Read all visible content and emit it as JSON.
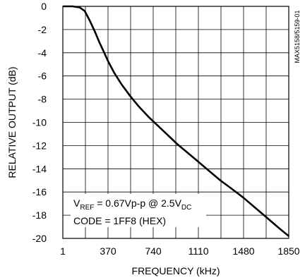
{
  "chart_data": {
    "type": "line",
    "xlabel": "FREQUENCY (kHz)",
    "ylabel": "RELATIVE OUTPUT (dB)",
    "xlim": [
      1,
      1850
    ],
    "ylim": [
      -20,
      0
    ],
    "grid": true,
    "x_ticks": [
      "1",
      "370",
      "740",
      "1110",
      "1480",
      "1850"
    ],
    "y_ticks": [
      "0",
      "-2",
      "-4",
      "-6",
      "-8",
      "-10",
      "-12",
      "-14",
      "-16",
      "-18",
      "-20"
    ],
    "series": [
      {
        "x": [
          1,
          80,
          140,
          180,
          220,
          260,
          300,
          340,
          370,
          420,
          480,
          550,
          620,
          700,
          780,
          860,
          940,
          1020,
          1110,
          1200,
          1290,
          1380,
          1480,
          1580,
          1680,
          1780,
          1850
        ],
        "y": [
          0,
          0,
          -0.1,
          -0.4,
          -1.2,
          -2.1,
          -3.1,
          -4.0,
          -4.7,
          -5.7,
          -6.7,
          -7.7,
          -8.6,
          -9.5,
          -10.3,
          -11.1,
          -11.9,
          -12.6,
          -13.4,
          -14.2,
          -15.0,
          -15.7,
          -16.5,
          -17.4,
          -18.3,
          -19.2,
          -19.8
        ]
      }
    ],
    "annotation": {
      "line1": {
        "main": "V",
        "sub1": "REF",
        "mid": " = 0.67Vp-p @ 2.5V",
        "sub2": "DC"
      },
      "line2": "CODE = 1FF8 (HEX)"
    },
    "side_label": "MAX5158/5159-01"
  }
}
